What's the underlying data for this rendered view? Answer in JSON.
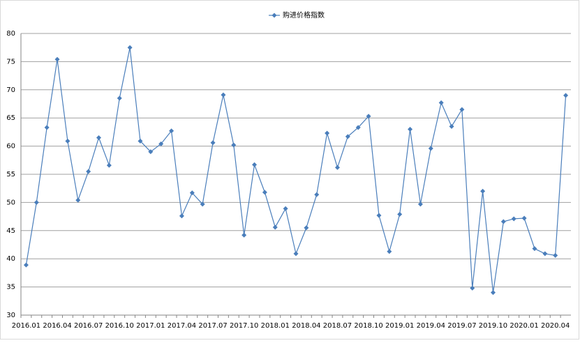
{
  "chart_data": {
    "type": "line",
    "categories": [
      "2016.01",
      null,
      null,
      "2016.04",
      null,
      null,
      "2016.07",
      null,
      null,
      "2016.10",
      null,
      null,
      "2017.01",
      null,
      null,
      "2017.04",
      null,
      null,
      "2017.07",
      null,
      null,
      "2017.10",
      null,
      null,
      "2018.01",
      null,
      null,
      "2018.04",
      null,
      null,
      "2018.07",
      null,
      null,
      "2018.10",
      null,
      null,
      "2019.01",
      null,
      null,
      "2019.04",
      null,
      null,
      "2019.07",
      null,
      null,
      "2019.10",
      null,
      null,
      "2020.01",
      null,
      null,
      "2020.04",
      null
    ],
    "series": [
      {
        "name": "购进价格指数",
        "color": "#4a7ebb",
        "values": [
          38.9,
          50.0,
          63.3,
          75.4,
          60.9,
          50.4,
          55.5,
          61.5,
          56.6,
          68.5,
          77.5,
          60.9,
          59.0,
          60.4,
          62.7,
          47.6,
          51.7,
          49.7,
          60.6,
          69.1,
          60.2,
          44.2,
          56.7,
          51.8,
          45.6,
          48.9,
          40.9,
          45.5,
          51.4,
          62.3,
          56.2,
          61.7,
          63.3,
          65.3,
          47.7,
          41.3,
          47.9,
          63.0,
          49.7,
          59.6,
          67.7,
          63.5,
          66.5,
          34.8,
          52.0,
          34.0,
          46.6,
          47.1,
          47.2,
          41.8,
          40.9,
          40.6,
          69.0
        ]
      }
    ],
    "ylim": [
      30,
      80
    ],
    "yticks": [
      30,
      35,
      40,
      45,
      50,
      55,
      60,
      65,
      70,
      75,
      80
    ],
    "grid": true,
    "legend": "top"
  }
}
